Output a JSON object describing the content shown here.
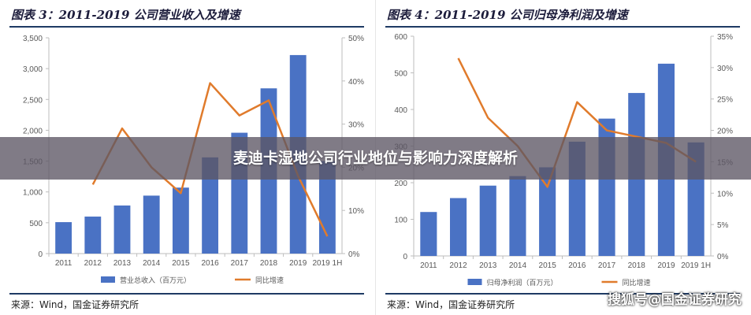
{
  "banner": {
    "title": "麦迪卡湿地公司行业地位与影响力深度解析"
  },
  "watermark": "搜狐号@国金证券研究",
  "colors": {
    "bar": "#4a72c4",
    "line": "#e07b2c",
    "axis": "#bdbdbd",
    "text": "#595959",
    "title": "#1d1d3c"
  },
  "charts": [
    {
      "title": "图表 3：2011-2019 公司营业收入及增速",
      "source": "来源：Wind，国金证券研究所",
      "chart_data": {
        "type": "bar",
        "categories": [
          "2011",
          "2012",
          "2013",
          "2014",
          "2015",
          "2016",
          "2017",
          "2018",
          "2019",
          "2019 1H"
        ],
        "series": [
          {
            "name": "营业总收入（百万元）",
            "type": "bar",
            "axis": "left",
            "values": [
              510,
              600,
              780,
              940,
              1070,
              1560,
              1960,
              2680,
              3220,
              1500
            ]
          },
          {
            "name": "同比增速",
            "type": "line",
            "axis": "right",
            "values": [
              null,
              16,
              29,
              20,
              14,
              39.5,
              32,
              35.5,
              18,
              4
            ]
          }
        ],
        "y_left": {
          "range": [
            0,
            3500
          ],
          "ticks": [
            0,
            500,
            1000,
            1500,
            2000,
            2500,
            3000,
            3500
          ],
          "tick_labels": [
            "0",
            "500",
            "1,000",
            "1,500",
            "2,000",
            "2,500",
            "3,000",
            "3,500"
          ]
        },
        "y_right": {
          "range": [
            0,
            50
          ],
          "ticks": [
            0,
            10,
            20,
            30,
            40,
            50
          ],
          "tick_labels": [
            "0%",
            "10%",
            "20%",
            "30%",
            "40%",
            "50%"
          ]
        },
        "grid": false,
        "legend": "bottom-center"
      }
    },
    {
      "title": "图表 4：2011-2019 公司归母净利润及增速",
      "source": "来源：Wind，国金证券研究所",
      "chart_data": {
        "type": "bar",
        "categories": [
          "2011",
          "2012",
          "2013",
          "2014",
          "2015",
          "2016",
          "2017",
          "2018",
          "2019",
          "2019 1H"
        ],
        "series": [
          {
            "name": "归母净利润（百万元）",
            "type": "bar",
            "axis": "left",
            "values": [
              120,
              158,
              192,
              218,
              242,
              312,
              375,
              445,
              525,
              310
            ]
          },
          {
            "name": "同比增速",
            "type": "line",
            "axis": "right",
            "values": [
              null,
              31.5,
              22,
              17.5,
              11,
              24.5,
              20,
              19,
              18,
              15
            ]
          }
        ],
        "y_left": {
          "range": [
            0,
            600
          ],
          "ticks": [
            0,
            100,
            200,
            300,
            400,
            500,
            600
          ],
          "tick_labels": [
            "0",
            "100",
            "200",
            "300",
            "400",
            "500",
            "600"
          ]
        },
        "y_right": {
          "range": [
            0,
            35
          ],
          "ticks": [
            0,
            5,
            10,
            15,
            20,
            25,
            30,
            35
          ],
          "tick_labels": [
            "0%",
            "5%",
            "10%",
            "15%",
            "20%",
            "25%",
            "30%",
            "35%"
          ]
        },
        "grid": false,
        "legend": "bottom-center"
      }
    }
  ]
}
